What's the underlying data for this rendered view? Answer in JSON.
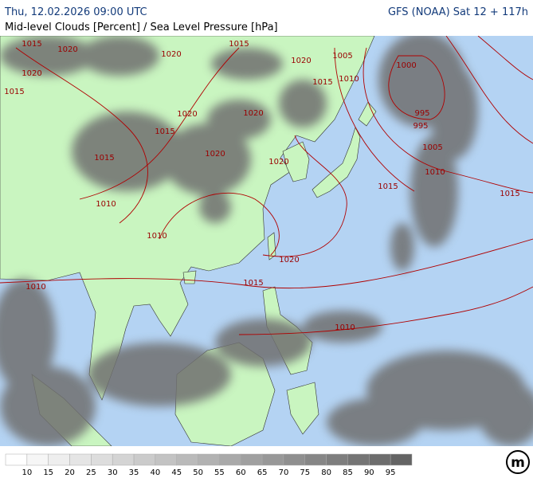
{
  "header": {
    "datetime": "Thu, 12.02.2026 09:00 UTC",
    "model": "GFS (NOAA) Sat 12 + 117h",
    "subtitle": "Mid-level Clouds [Percent] / Sea Level Pressure [hPa]"
  },
  "map": {
    "isobar_labels": [
      1015,
      1020,
      1020,
      1015,
      1020,
      1015,
      1020,
      1005,
      1015,
      1010,
      1000,
      995,
      995,
      1005,
      1010,
      1015,
      1015,
      1020,
      1020,
      1015,
      1020,
      1015,
      1010,
      1020,
      1010,
      1020,
      1015,
      1010,
      1010
    ]
  },
  "legend": {
    "ticks": [
      10,
      15,
      20,
      25,
      30,
      35,
      40,
      45,
      50,
      55,
      60,
      65,
      70,
      75,
      80,
      85,
      90,
      95
    ]
  },
  "logo": "m"
}
